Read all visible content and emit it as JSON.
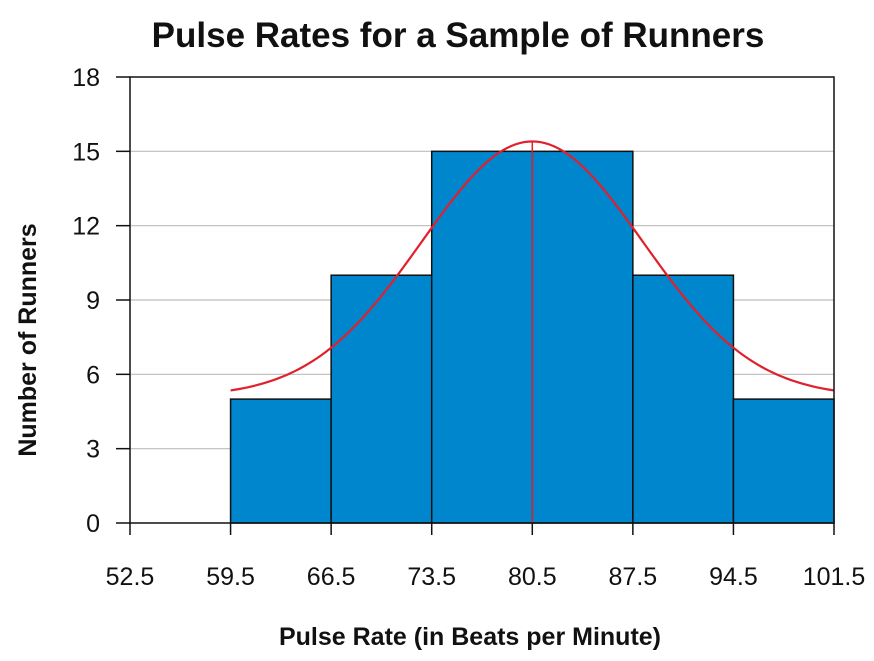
{
  "chart_data": {
    "type": "bar",
    "title": "Pulse Rates for a Sample of Runners",
    "xlabel": "Pulse Rate (in Beats per Minute)",
    "ylabel": "Number of Runners",
    "x_ticks": [
      "52.5",
      "59.5",
      "66.5",
      "73.5",
      "80.5",
      "87.5",
      "94.5",
      "101.5"
    ],
    "y_ticks": [
      "0",
      "3",
      "6",
      "9",
      "12",
      "15",
      "18"
    ],
    "xlim": [
      52.5,
      101.5
    ],
    "ylim": [
      0,
      18
    ],
    "bins": [
      {
        "from": 59.5,
        "to": 66.5,
        "value": 5
      },
      {
        "from": 66.5,
        "to": 73.5,
        "value": 10
      },
      {
        "from": 73.5,
        "to": 80.5,
        "value": 15
      },
      {
        "from": 80.5,
        "to": 87.5,
        "value": 15
      },
      {
        "from": 87.5,
        "to": 94.5,
        "value": 10
      },
      {
        "from": 94.5,
        "to": 101.5,
        "value": 5
      }
    ],
    "normal_curve": {
      "mean": 80.5,
      "peak": 15.4,
      "baseline": 5.1,
      "sd": 7.7,
      "from": 59.5,
      "to": 101.5
    },
    "grid": true,
    "colors": {
      "bar": "#0086cc",
      "bar_edge": "#111111",
      "curve": "#e0202d",
      "grid": "#bdbdbd"
    }
  }
}
